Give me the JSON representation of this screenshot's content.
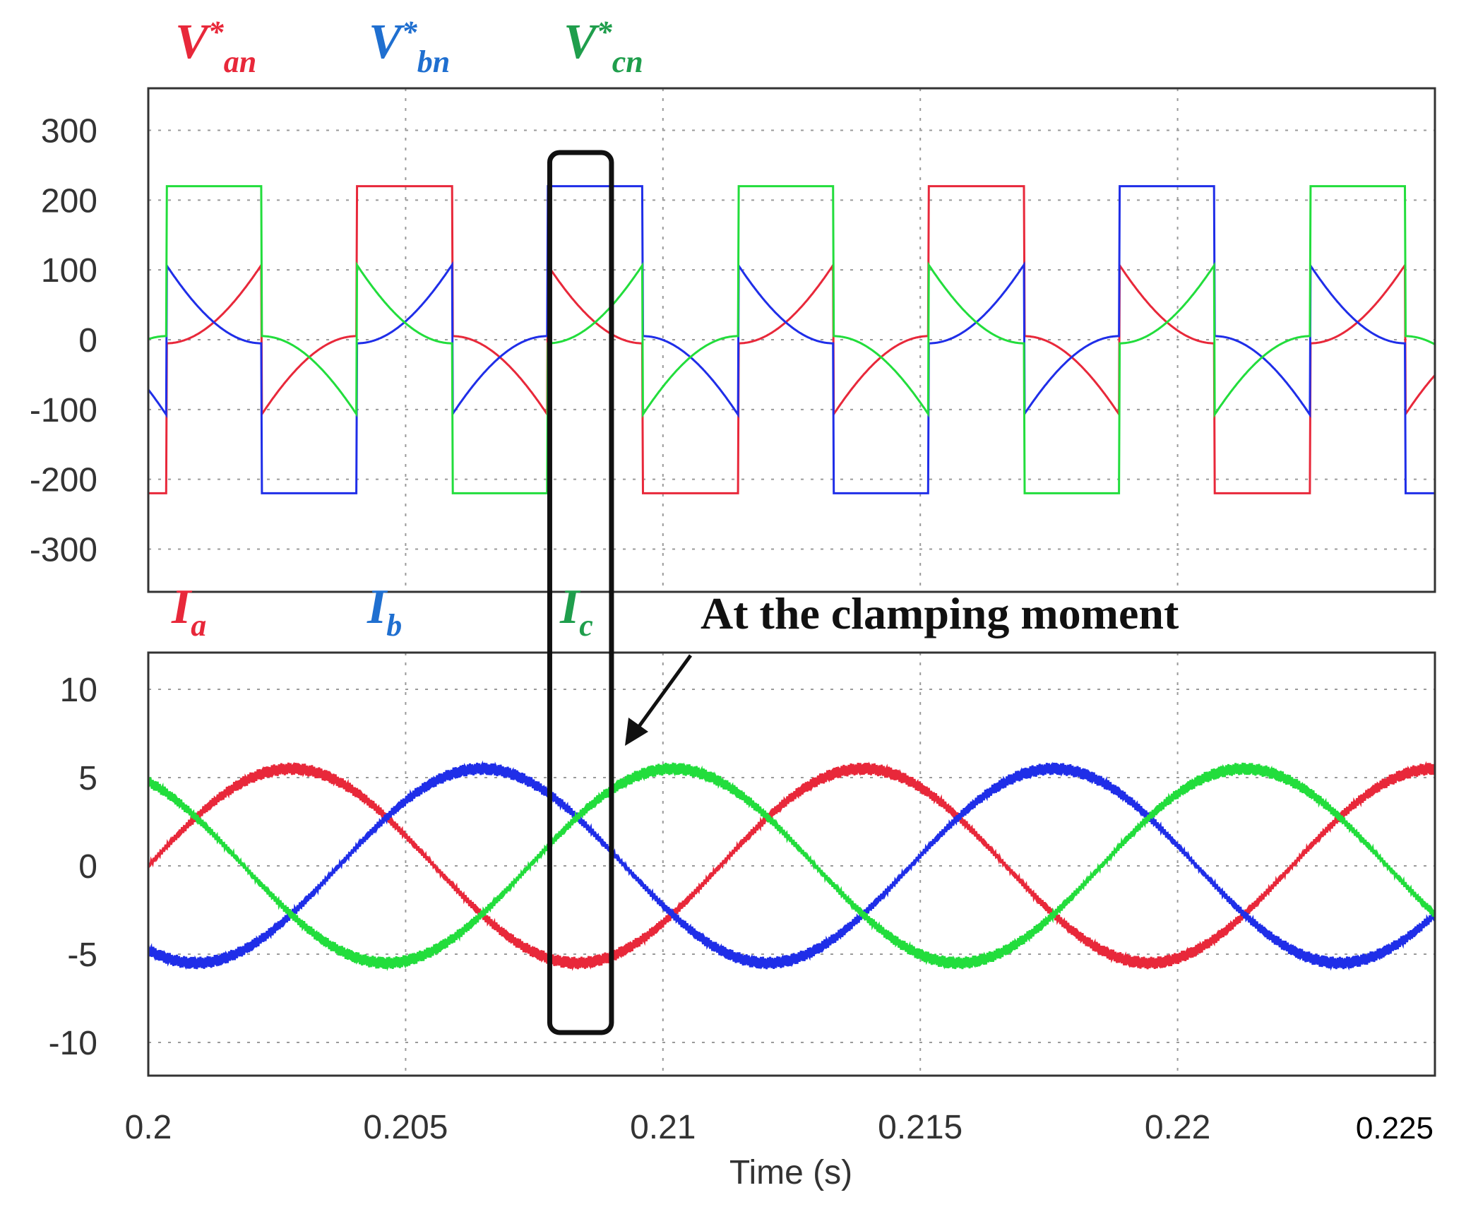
{
  "chart_data": [
    {
      "type": "line",
      "id": "voltage-panel",
      "ylim": [
        -300,
        300
      ],
      "yticks": [
        300,
        200,
        100,
        0,
        -100,
        -200,
        -300
      ],
      "ytick_labels": [
        "300",
        "200",
        "100",
        "0",
        "-100",
        "-200",
        "-300"
      ],
      "xlim": [
        0.2,
        0.225
      ],
      "grid": true,
      "legend_position": "top-left, above panel",
      "series": [
        {
          "name": "V*an",
          "main": "V",
          "sup": "*",
          "sub": "an",
          "color": "#e8283a",
          "phase_deg": 0,
          "fundamental_amplitude": 130,
          "clamp_level": 220
        },
        {
          "name": "V*bn",
          "main": "V",
          "sup": "*",
          "sub": "bn",
          "color": "#1f2ee8",
          "phase_deg": -120,
          "fundamental_amplitude": 130,
          "clamp_level": 220
        },
        {
          "name": "V*cn",
          "main": "V",
          "sup": "*",
          "sub": "cn",
          "color": "#22dd3c",
          "phase_deg": 120,
          "fundamental_amplitude": 130,
          "clamp_level": 220
        }
      ],
      "fundamental_frequency_hz": 90,
      "reference_time_s": 0.2022
    },
    {
      "type": "line",
      "id": "current-panel",
      "ylim": [
        -12,
        12
      ],
      "yticks": [
        10,
        5,
        0,
        -5,
        -10
      ],
      "ytick_labels": [
        "10",
        "5",
        "0",
        "-5",
        "-10"
      ],
      "xlim": [
        0.2,
        0.225
      ],
      "xticks": [
        0.2,
        0.205,
        0.21,
        0.215,
        0.22,
        0.225
      ],
      "xtick_labels": [
        "0.2",
        "0.205",
        "0.21",
        "0.215",
        "0.22",
        "0.225"
      ],
      "xlabel": "Time (s)",
      "grid": true,
      "legend_position": "top-left, above panel",
      "series": [
        {
          "name": "Ia",
          "main": "I",
          "sub": "a",
          "color": "#e8283a",
          "phase_deg": 0,
          "amplitude": 5.5
        },
        {
          "name": "Ib",
          "main": "I",
          "sub": "b",
          "color": "#1f2ee8",
          "phase_deg": -120,
          "amplitude": 5.5
        },
        {
          "name": "Ic",
          "main": "I",
          "sub": "c",
          "color": "#22dd3c",
          "phase_deg": 120,
          "amplitude": 5.5
        }
      ],
      "fundamental_frequency_hz": 90,
      "reference_time_s": 0.2
    }
  ],
  "highlight_box": {
    "x_range": [
      0.2078,
      0.209
    ],
    "label": "clamping-window"
  },
  "annotation": {
    "text": "At the clamping moment",
    "points_to": {
      "x": 0.2092,
      "y": 5.5
    }
  }
}
